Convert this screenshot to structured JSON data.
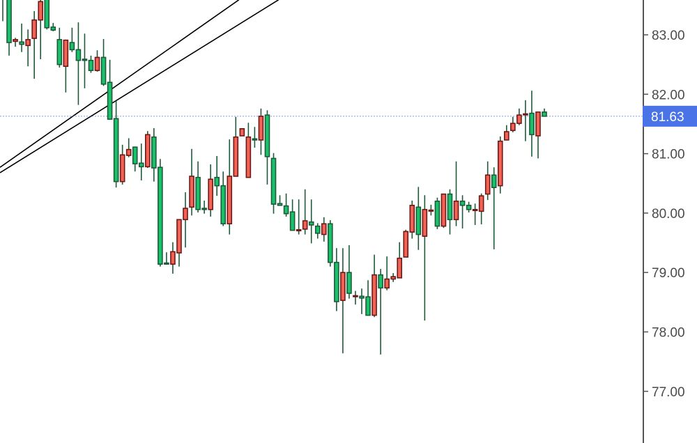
{
  "chart_data": {
    "type": "candlestick",
    "title": "",
    "xlabel": "",
    "ylabel": "",
    "ylim": [
      76.3,
      83.59
    ],
    "y_ticks": [
      "83.00",
      "82.00",
      "81.00",
      "80.00",
      "79.00",
      "78.00",
      "77.00"
    ],
    "y_tick_values": [
      83,
      82,
      81,
      80,
      79,
      78,
      77
    ],
    "grid": false,
    "current_price": 81.63,
    "current_price_label": "81.63",
    "colors": {
      "up_fill": "#f26355",
      "up_border": "#6b1a17",
      "down_fill": "#19c26a",
      "down_border": "#1e5a3a",
      "wick": "#1e5a3a",
      "price_line": "#4a73e8",
      "price_tag": "#4a73e8",
      "trendline": "#000000",
      "axis": "#555555"
    },
    "candles_ohlc": [
      [
        83.75,
        83.8,
        83.23,
        83.65
      ],
      [
        83.7,
        83.8,
        82.65,
        82.87
      ],
      [
        82.89,
        82.95,
        82.8,
        82.92
      ],
      [
        82.88,
        83.19,
        82.71,
        82.84
      ],
      [
        82.82,
        83.09,
        82.47,
        82.92
      ],
      [
        82.94,
        83.4,
        82.26,
        83.25
      ],
      [
        83.25,
        83.62,
        82.59,
        83.56
      ],
      [
        83.62,
        83.7,
        83.09,
        83.12
      ],
      [
        83.13,
        83.2,
        83.06,
        83.08
      ],
      [
        82.92,
        83.12,
        82.45,
        82.5
      ],
      [
        82.47,
        82.92,
        82.03,
        82.91
      ],
      [
        82.87,
        83.12,
        82.71,
        82.75
      ],
      [
        82.75,
        83.21,
        81.82,
        82.57
      ],
      [
        82.59,
        83.02,
        82.1,
        82.57
      ],
      [
        82.57,
        82.65,
        82.36,
        82.4
      ],
      [
        82.4,
        82.74,
        82.38,
        82.62
      ],
      [
        82.62,
        82.93,
        82.14,
        82.17
      ],
      [
        82.2,
        82.58,
        81.58,
        81.58
      ],
      [
        81.59,
        81.89,
        80.43,
        80.53
      ],
      [
        80.53,
        81.15,
        80.48,
        80.98
      ],
      [
        80.97,
        81.26,
        80.94,
        81.07
      ],
      [
        81.11,
        81.12,
        80.7,
        80.83
      ],
      [
        80.84,
        81.17,
        80.55,
        80.78
      ],
      [
        80.78,
        81.38,
        80.76,
        81.32
      ],
      [
        81.28,
        81.43,
        80.53,
        80.76
      ],
      [
        80.77,
        80.91,
        79.1,
        79.14
      ],
      [
        79.16,
        79.34,
        79.14,
        79.14
      ],
      [
        79.14,
        79.51,
        78.98,
        79.35
      ],
      [
        79.33,
        79.89,
        79.1,
        79.89
      ],
      [
        79.89,
        80.35,
        79.42,
        80.08
      ],
      [
        80.1,
        81.08,
        79.96,
        80.62
      ],
      [
        80.6,
        80.87,
        80.01,
        80.06
      ],
      [
        80.08,
        80.21,
        79.99,
        80.06
      ],
      [
        80.06,
        80.82,
        79.94,
        80.57
      ],
      [
        80.6,
        80.96,
        80.29,
        80.46
      ],
      [
        80.46,
        80.7,
        79.78,
        79.82
      ],
      [
        79.82,
        81.24,
        79.64,
        80.62
      ],
      [
        80.62,
        81.62,
        80.62,
        81.28
      ],
      [
        81.3,
        81.42,
        81.3,
        81.42
      ],
      [
        80.6,
        81.52,
        80.6,
        81.28
      ],
      [
        81.25,
        81.45,
        81.1,
        81.23
      ],
      [
        81.23,
        81.76,
        80.98,
        81.63
      ],
      [
        81.65,
        81.73,
        80.48,
        80.95
      ],
      [
        80.92,
        81.01,
        79.99,
        80.15
      ],
      [
        80.16,
        80.3,
        80.13,
        80.13
      ],
      [
        80.12,
        80.33,
        79.94,
        79.99
      ],
      [
        80.02,
        80.23,
        79.71,
        79.71
      ],
      [
        79.71,
        80.23,
        79.64,
        79.72
      ],
      [
        79.73,
        80.4,
        79.64,
        79.87
      ],
      [
        79.85,
        80.23,
        79.49,
        79.8
      ],
      [
        79.78,
        79.83,
        79.57,
        79.66
      ],
      [
        79.64,
        79.93,
        79.52,
        79.82
      ],
      [
        79.82,
        79.88,
        79.1,
        79.17
      ],
      [
        79.17,
        79.41,
        78.35,
        78.51
      ],
      [
        78.53,
        79.41,
        77.64,
        79.0
      ],
      [
        79.0,
        79.46,
        78.56,
        78.65
      ],
      [
        78.6,
        78.69,
        78.46,
        78.61
      ],
      [
        78.6,
        78.73,
        78.3,
        78.57
      ],
      [
        78.59,
        78.87,
        78.28,
        78.28
      ],
      [
        78.28,
        79.3,
        78.25,
        78.96
      ],
      [
        78.96,
        79.06,
        77.62,
        78.74
      ],
      [
        78.74,
        79.27,
        78.7,
        78.89
      ],
      [
        78.89,
        78.99,
        78.84,
        78.93
      ],
      [
        78.91,
        79.51,
        78.91,
        79.24
      ],
      [
        79.26,
        79.72,
        79.26,
        79.69
      ],
      [
        79.68,
        80.21,
        79.57,
        80.13
      ],
      [
        80.1,
        80.44,
        79.38,
        79.64
      ],
      [
        79.61,
        80.3,
        78.19,
        80.06
      ],
      [
        80.04,
        80.14,
        79.96,
        80.05
      ],
      [
        80.2,
        80.26,
        79.73,
        79.78
      ],
      [
        79.78,
        80.32,
        79.75,
        80.32
      ],
      [
        80.32,
        80.4,
        79.64,
        79.89
      ],
      [
        79.89,
        80.87,
        79.78,
        80.2
      ],
      [
        80.2,
        80.3,
        79.74,
        80.13
      ],
      [
        80.13,
        80.19,
        80.01,
        80.06
      ],
      [
        80.05,
        80.16,
        79.8,
        80.06
      ],
      [
        80.03,
        80.33,
        79.81,
        80.29
      ],
      [
        80.32,
        80.87,
        80.22,
        80.64
      ],
      [
        80.64,
        80.77,
        79.39,
        80.43
      ],
      [
        80.46,
        81.29,
        80.33,
        81.21
      ],
      [
        81.23,
        81.48,
        81.23,
        81.37
      ],
      [
        81.39,
        81.62,
        81.36,
        81.51
      ],
      [
        81.51,
        81.76,
        81.48,
        81.65
      ],
      [
        81.66,
        81.9,
        81.21,
        81.67
      ],
      [
        81.68,
        82.06,
        80.95,
        81.32
      ],
      [
        81.3,
        81.7,
        80.92,
        81.7
      ],
      [
        81.7,
        81.76,
        81.63,
        81.63
      ]
    ],
    "trendlines": [
      {
        "from": {
          "bar": -0.44,
          "price": 80.77
        },
        "to": {
          "bar": 37.5,
          "price": 83.59
        }
      },
      {
        "from": {
          "bar": -0.44,
          "price": 80.68
        },
        "to": {
          "bar": 43.8,
          "price": 83.59
        }
      }
    ]
  }
}
